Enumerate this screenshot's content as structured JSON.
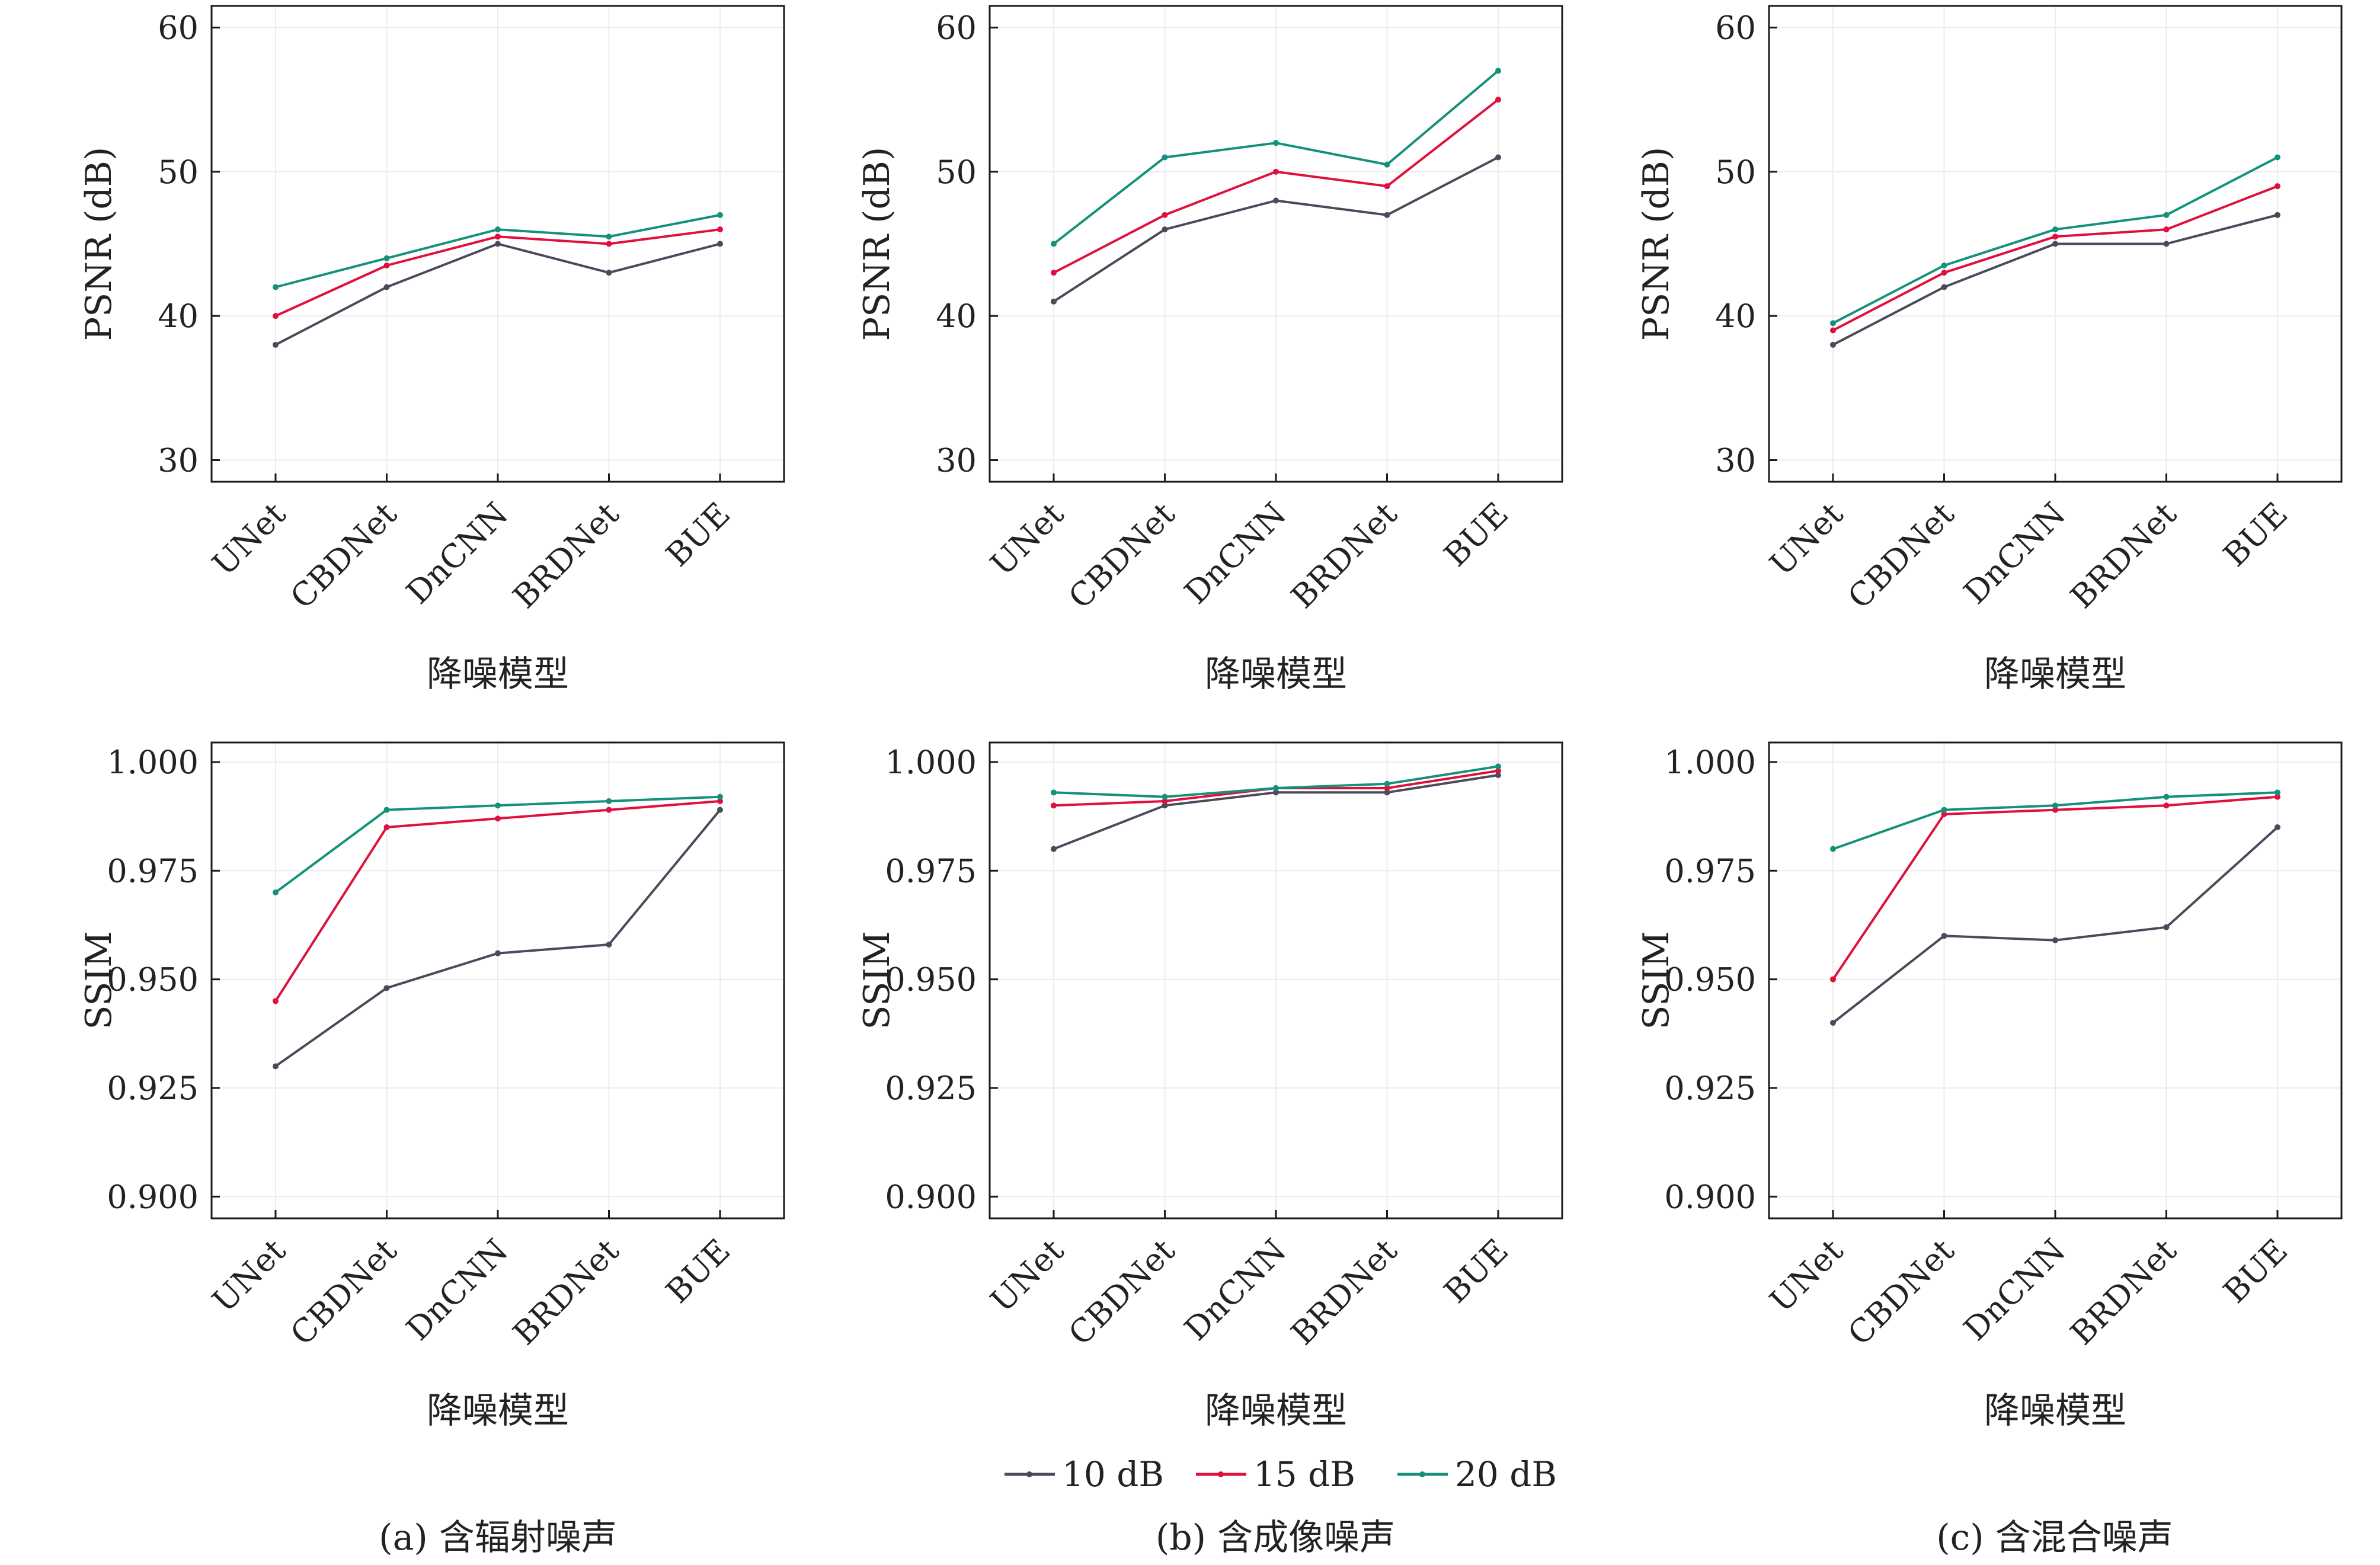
{
  "figure": {
    "legend": [
      {
        "label": "10 dB",
        "color": "#4a4a5a"
      },
      {
        "label": "15 dB",
        "color": "#e0103c"
      },
      {
        "label": "20 dB",
        "color": "#14917a"
      }
    ],
    "captions": [
      "(a) 含辐射噪声",
      "(b) 含成像噪声",
      "(c) 含混合噪声"
    ]
  },
  "chart_data": [
    {
      "type": "line",
      "panel": "a-psnr",
      "categories": [
        "UNet",
        "CBDNet",
        "DnCNN",
        "BRDNet",
        "BUE"
      ],
      "xlabel": "降噪模型",
      "ylabel": "PSNR (dB)",
      "ylim": [
        28.5,
        61.5
      ],
      "yticks": [
        "30",
        "40",
        "50",
        "60"
      ],
      "ytick_values": [
        30,
        40,
        50,
        60
      ],
      "grid": true,
      "series": [
        {
          "name": "10 dB",
          "values": [
            38,
            42,
            45,
            43,
            45
          ]
        },
        {
          "name": "15 dB",
          "values": [
            40,
            43.5,
            45.5,
            45,
            46
          ]
        },
        {
          "name": "20 dB",
          "values": [
            42,
            44,
            46,
            45.5,
            47
          ]
        }
      ]
    },
    {
      "type": "line",
      "panel": "b-psnr",
      "categories": [
        "UNet",
        "CBDNet",
        "DnCNN",
        "BRDNet",
        "BUE"
      ],
      "xlabel": "降噪模型",
      "ylabel": "PSNR (dB)",
      "ylim": [
        28.5,
        61.5
      ],
      "yticks": [
        "30",
        "40",
        "50",
        "60"
      ],
      "ytick_values": [
        30,
        40,
        50,
        60
      ],
      "grid": true,
      "series": [
        {
          "name": "10 dB",
          "values": [
            41,
            46,
            48,
            47,
            51
          ]
        },
        {
          "name": "15 dB",
          "values": [
            43,
            47,
            50,
            49,
            55
          ]
        },
        {
          "name": "20 dB",
          "values": [
            45,
            51,
            52,
            50.5,
            57
          ]
        }
      ]
    },
    {
      "type": "line",
      "panel": "c-psnr",
      "categories": [
        "UNet",
        "CBDNet",
        "DnCNN",
        "BRDNet",
        "BUE"
      ],
      "xlabel": "降噪模型",
      "ylabel": "PSNR (dB)",
      "ylim": [
        28.5,
        61.5
      ],
      "yticks": [
        "30",
        "40",
        "50",
        "60"
      ],
      "ytick_values": [
        30,
        40,
        50,
        60
      ],
      "grid": true,
      "series": [
        {
          "name": "10 dB",
          "values": [
            38,
            42,
            45,
            45,
            47
          ]
        },
        {
          "name": "15 dB",
          "values": [
            39,
            43,
            45.5,
            46,
            49
          ]
        },
        {
          "name": "20 dB",
          "values": [
            39.5,
            43.5,
            46,
            47,
            51
          ]
        }
      ]
    },
    {
      "type": "line",
      "panel": "a-ssim",
      "categories": [
        "UNet",
        "CBDNet",
        "DnCNN",
        "BRDNet",
        "BUE"
      ],
      "xlabel": "降噪模型",
      "ylabel": "SSIM",
      "ylim": [
        0.895,
        1.0045
      ],
      "yticks": [
        "0.900",
        "0.925",
        "0.950",
        "0.975",
        "1.000"
      ],
      "ytick_values": [
        0.9,
        0.925,
        0.95,
        0.975,
        1.0
      ],
      "grid": true,
      "series": [
        {
          "name": "10 dB",
          "values": [
            0.93,
            0.948,
            0.956,
            0.958,
            0.989
          ]
        },
        {
          "name": "15 dB",
          "values": [
            0.945,
            0.985,
            0.987,
            0.989,
            0.991
          ]
        },
        {
          "name": "20 dB",
          "values": [
            0.97,
            0.989,
            0.99,
            0.991,
            0.992
          ]
        }
      ]
    },
    {
      "type": "line",
      "panel": "b-ssim",
      "categories": [
        "UNet",
        "CBDNet",
        "DnCNN",
        "BRDNet",
        "BUE"
      ],
      "xlabel": "降噪模型",
      "ylabel": "SSIM",
      "ylim": [
        0.895,
        1.0045
      ],
      "yticks": [
        "0.900",
        "0.925",
        "0.950",
        "0.975",
        "1.000"
      ],
      "ytick_values": [
        0.9,
        0.925,
        0.95,
        0.975,
        1.0
      ],
      "grid": true,
      "series": [
        {
          "name": "10 dB",
          "values": [
            0.98,
            0.99,
            0.993,
            0.993,
            0.997
          ]
        },
        {
          "name": "15 dB",
          "values": [
            0.99,
            0.991,
            0.994,
            0.994,
            0.998
          ]
        },
        {
          "name": "20 dB",
          "values": [
            0.993,
            0.992,
            0.994,
            0.995,
            0.999
          ]
        }
      ]
    },
    {
      "type": "line",
      "panel": "c-ssim",
      "categories": [
        "UNet",
        "CBDNet",
        "DnCNN",
        "BRDNet",
        "BUE"
      ],
      "xlabel": "降噪模型",
      "ylabel": "SSIM",
      "ylim": [
        0.895,
        1.0045
      ],
      "yticks": [
        "0.900",
        "0.925",
        "0.950",
        "0.975",
        "1.000"
      ],
      "ytick_values": [
        0.9,
        0.925,
        0.95,
        0.975,
        1.0
      ],
      "grid": true,
      "series": [
        {
          "name": "10 dB",
          "values": [
            0.94,
            0.96,
            0.959,
            0.962,
            0.985
          ]
        },
        {
          "name": "15 dB",
          "values": [
            0.95,
            0.988,
            0.989,
            0.99,
            0.992
          ]
        },
        {
          "name": "20 dB",
          "values": [
            0.98,
            0.989,
            0.99,
            0.992,
            0.993
          ]
        }
      ]
    }
  ]
}
